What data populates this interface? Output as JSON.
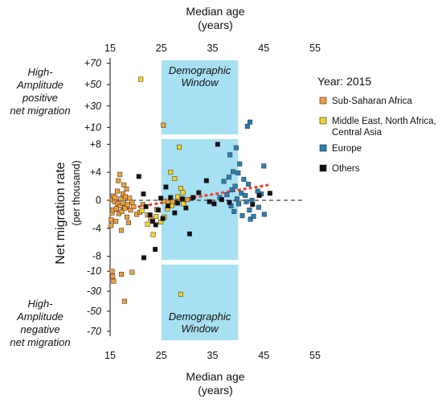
{
  "chart_data": {
    "type": "scatter",
    "xlabel": [
      "Median age",
      "(years)"
    ],
    "ylabel": "Net migration rate",
    "ylabel_sub": "(per thousand)",
    "x_ticks": [
      "15",
      "25",
      "35",
      "45",
      "55"
    ],
    "xlim": [
      15,
      55
    ],
    "panels": [
      {
        "id": "high",
        "ticks": [
          "+70",
          "+50",
          "+30",
          "+10"
        ],
        "tick_values": [
          70,
          50,
          30,
          10
        ],
        "ylim": [
          5,
          75
        ],
        "side_label": [
          "High-",
          "Amplitude",
          "positive",
          "net migration"
        ]
      },
      {
        "id": "mid",
        "ticks": [
          "+8",
          "+4",
          "0",
          "-4",
          "-8"
        ],
        "tick_values": [
          8,
          4,
          0,
          -4,
          -8
        ],
        "ylim": [
          -8.5,
          8.5
        ],
        "side_label": []
      },
      {
        "id": "low",
        "ticks": [
          "-10",
          "-30",
          "-50",
          "-70"
        ],
        "tick_values": [
          -10,
          -30,
          -50,
          -70
        ],
        "ylim": [
          -75,
          -5
        ],
        "side_label": [
          "High-",
          "Amplitude",
          "negative",
          "net migration"
        ]
      }
    ],
    "window": {
      "x": [
        25,
        40
      ],
      "label": [
        "Demographic",
        "Window"
      ],
      "color": "#a8e0f3"
    },
    "legend": {
      "title": "Year: 2015",
      "entries": [
        {
          "series": "Sub-Saharan Africa",
          "lines": [
            "Sub-Saharan Africa"
          ],
          "color": "#ef9f3c"
        },
        {
          "series": "Middle East, North Africa, Central Asia",
          "lines": [
            "Middle East, North Africa,",
            "Central Asia"
          ],
          "color": "#f3d42a"
        },
        {
          "series": "Europe",
          "lines": [
            "Europe"
          ],
          "color": "#2a7fb5"
        },
        {
          "series": "Others",
          "lines": [
            "Others"
          ],
          "color": "#111111"
        }
      ]
    },
    "trend": {
      "x": [
        15,
        46
      ],
      "y": [
        -1.6,
        2.2
      ],
      "color": "#e8402a"
    },
    "zero_line": 0,
    "series": [
      {
        "name": "Sub-Saharan Africa",
        "color": "#ef9f3c",
        "points": [
          [
            15.2,
            -3.6
          ],
          [
            15.2,
            -2.8
          ],
          [
            15.4,
            -1.8
          ],
          [
            15.5,
            -1.4
          ],
          [
            15.4,
            0.1
          ],
          [
            15.6,
            0.6
          ],
          [
            15.9,
            -0.2
          ],
          [
            16.0,
            0.4
          ],
          [
            16.2,
            -1.2
          ],
          [
            16.1,
            -3.0
          ],
          [
            16.4,
            1.3
          ],
          [
            16.5,
            -0.5
          ],
          [
            16.6,
            2.8
          ],
          [
            16.7,
            -1.9
          ],
          [
            16.9,
            3.7
          ],
          [
            17.0,
            -0.8
          ],
          [
            17.1,
            0.2
          ],
          [
            17.2,
            -4.3
          ],
          [
            17.3,
            -1.6
          ],
          [
            17.5,
            0.9
          ],
          [
            17.6,
            -0.4
          ],
          [
            17.7,
            2.2
          ],
          [
            17.9,
            -1.1
          ],
          [
            18.0,
            0.5
          ],
          [
            18.2,
            1.6
          ],
          [
            18.3,
            -2.4
          ],
          [
            18.4,
            -0.6
          ],
          [
            18.6,
            -3.2
          ],
          [
            18.8,
            0.3
          ],
          [
            19.0,
            -1.4
          ],
          [
            19.3,
            -0.3
          ],
          [
            19.6,
            -0.9
          ],
          [
            20.2,
            -2.0
          ],
          [
            20.8,
            -1.7
          ],
          [
            21.4,
            -0.6
          ],
          [
            22.3,
            -2.1
          ],
          [
            22.9,
            -2.6
          ],
          [
            24.1,
            -1.3
          ],
          [
            25.6,
            -0.1
          ],
          [
            26.3,
            -0.3
          ],
          [
            27.2,
            -0.2
          ],
          [
            28.1,
            -0.4
          ],
          [
            28.6,
            0.2
          ],
          [
            29.4,
            -0.1
          ],
          [
            30.1,
            0.1
          ],
          [
            25.4,
            12
          ],
          [
            15.4,
            -10
          ],
          [
            15.5,
            -15
          ],
          [
            15.7,
            -20
          ],
          [
            17.2,
            -13
          ],
          [
            17.8,
            -40
          ],
          [
            19.3,
            -11
          ]
        ]
      },
      {
        "name": "Middle East, North Africa, Central Asia",
        "color": "#f3d42a",
        "points": [
          [
            21.2,
            -1.5
          ],
          [
            22.3,
            -3.4
          ],
          [
            23.4,
            -4.9
          ],
          [
            24.0,
            -2.3
          ],
          [
            24.9,
            -3.1
          ],
          [
            25.6,
            -2.4
          ],
          [
            26.2,
            -1.2
          ],
          [
            27.0,
            -0.8
          ],
          [
            27.6,
            3.1
          ],
          [
            28.2,
            0.5
          ],
          [
            28.8,
            1.7
          ],
          [
            29.2,
            1.1
          ],
          [
            29.3,
            -0.5
          ],
          [
            28.5,
            7.6
          ],
          [
            26.8,
            4.0
          ],
          [
            21.0,
            55
          ],
          [
            28.8,
            -33
          ]
        ]
      },
      {
        "name": "Europe",
        "color": "#2a7fb5",
        "points": [
          [
            36.4,
            0.4
          ],
          [
            37.2,
            2.7
          ],
          [
            37.8,
            0.8
          ],
          [
            38.2,
            3.3
          ],
          [
            38.4,
            6.5
          ],
          [
            38.6,
            -0.8
          ],
          [
            38.8,
            1.5
          ],
          [
            39.0,
            4.1
          ],
          [
            39.2,
            -1.6
          ],
          [
            39.4,
            2.0
          ],
          [
            39.6,
            7.5
          ],
          [
            39.8,
            0.2
          ],
          [
            40.0,
            3.9
          ],
          [
            40.1,
            -0.5
          ],
          [
            40.3,
            5.2
          ],
          [
            40.6,
            1.0
          ],
          [
            40.8,
            -2.2
          ],
          [
            41.1,
            3.0
          ],
          [
            41.4,
            0.7
          ],
          [
            41.6,
            -0.2
          ],
          [
            42.0,
            2.3
          ],
          [
            42.2,
            -1.4
          ],
          [
            42.4,
            -2.7
          ],
          [
            42.7,
            0.0
          ],
          [
            43.0,
            -2.3
          ],
          [
            43.8,
            1.3
          ],
          [
            44.5,
            0.9
          ],
          [
            45.1,
            -2.0
          ],
          [
            45.0,
            4.9
          ],
          [
            44.0,
            -1.0
          ],
          [
            41.8,
            11
          ],
          [
            42.3,
            15
          ]
        ]
      },
      {
        "name": "Others",
        "color": "#111111",
        "points": [
          [
            20.6,
            3.4
          ],
          [
            21.5,
            0.9
          ],
          [
            22.0,
            -0.9
          ],
          [
            22.8,
            -2.1
          ],
          [
            23.3,
            -3.0
          ],
          [
            23.9,
            -3.5
          ],
          [
            24.4,
            -1.4
          ],
          [
            24.9,
            0.3
          ],
          [
            25.3,
            -2.6
          ],
          [
            25.9,
            1.9
          ],
          [
            26.3,
            -0.8
          ],
          [
            26.8,
            0.4
          ],
          [
            27.6,
            -1.8
          ],
          [
            28.2,
            -0.4
          ],
          [
            29.1,
            0.2
          ],
          [
            29.8,
            -1.1
          ],
          [
            30.5,
            -4.8
          ],
          [
            31.2,
            0.4
          ],
          [
            32.3,
            1.1
          ],
          [
            33.8,
            2.8
          ],
          [
            34.4,
            -0.2
          ],
          [
            35.3,
            -0.5
          ],
          [
            36.8,
            0.1
          ],
          [
            38.3,
            -0.3
          ],
          [
            42.8,
            -0.6
          ],
          [
            44.1,
            0.7
          ],
          [
            46.2,
            1.0
          ],
          [
            21.6,
            -8.2
          ],
          [
            36.0,
            8
          ],
          [
            23.8,
            -7
          ]
        ]
      }
    ]
  }
}
